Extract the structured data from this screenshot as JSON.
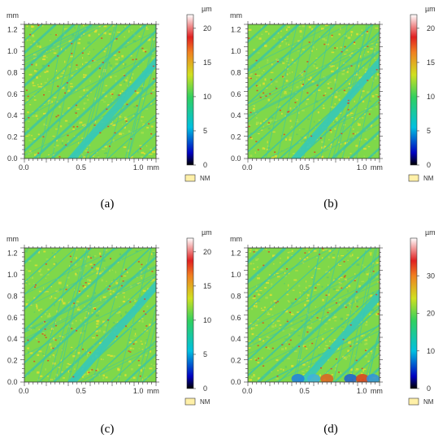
{
  "panels": [
    {
      "id": "a",
      "caption": "(a)",
      "x_unit": "mm",
      "y_unit": "mm",
      "x_ticks": [
        "0.0",
        "0.5",
        "1.0"
      ],
      "y_ticks": [
        "0.0",
        "0.2",
        "0.4",
        "0.6",
        "0.8",
        "1.0",
        "1.2"
      ],
      "colorbar_unit": "µm",
      "colorbar_ticks": [
        "0",
        "5",
        "10",
        "15",
        "20"
      ],
      "colorbar_max": 22,
      "nm_label": "NM"
    },
    {
      "id": "b",
      "caption": "(b)",
      "x_unit": "mm",
      "y_unit": "mm",
      "x_ticks": [
        "0.0",
        "0.5",
        "1.0"
      ],
      "y_ticks": [
        "0.0",
        "0.2",
        "0.4",
        "0.6",
        "0.8",
        "1.0",
        "1.2"
      ],
      "colorbar_unit": "µm",
      "colorbar_ticks": [
        "0",
        "5",
        "10",
        "15",
        "20"
      ],
      "colorbar_max": 22,
      "nm_label": "NM"
    },
    {
      "id": "c",
      "caption": "(c)",
      "x_unit": "mm",
      "y_unit": "mm",
      "x_ticks": [
        "0.0",
        "0.5",
        "1.0"
      ],
      "y_ticks": [
        "0.0",
        "0.2",
        "0.4",
        "0.6",
        "0.8",
        "1.0",
        "1.2"
      ],
      "colorbar_unit": "µm",
      "colorbar_ticks": [
        "0",
        "5",
        "10",
        "15",
        "20"
      ],
      "colorbar_max": 22,
      "nm_label": "NM"
    },
    {
      "id": "d",
      "caption": "(d)",
      "x_unit": "mm",
      "y_unit": "mm",
      "x_ticks": [
        "0.0",
        "0.5",
        "1.0"
      ],
      "y_ticks": [
        "0.0",
        "0.2",
        "0.4",
        "0.6",
        "0.8",
        "1.0",
        "1.2"
      ],
      "colorbar_unit": "µm",
      "colorbar_ticks": [
        "0",
        "10",
        "20",
        "30"
      ],
      "colorbar_max": 40,
      "nm_label": "NM"
    }
  ],
  "colors": {
    "surface_base": "#7fd84a",
    "scratch": "#3fc7a0",
    "band": "#36c9b8",
    "speck_yellow": "#e8e030",
    "speck_red": "#e04020",
    "nm_swatch": "#fff0a8"
  }
}
